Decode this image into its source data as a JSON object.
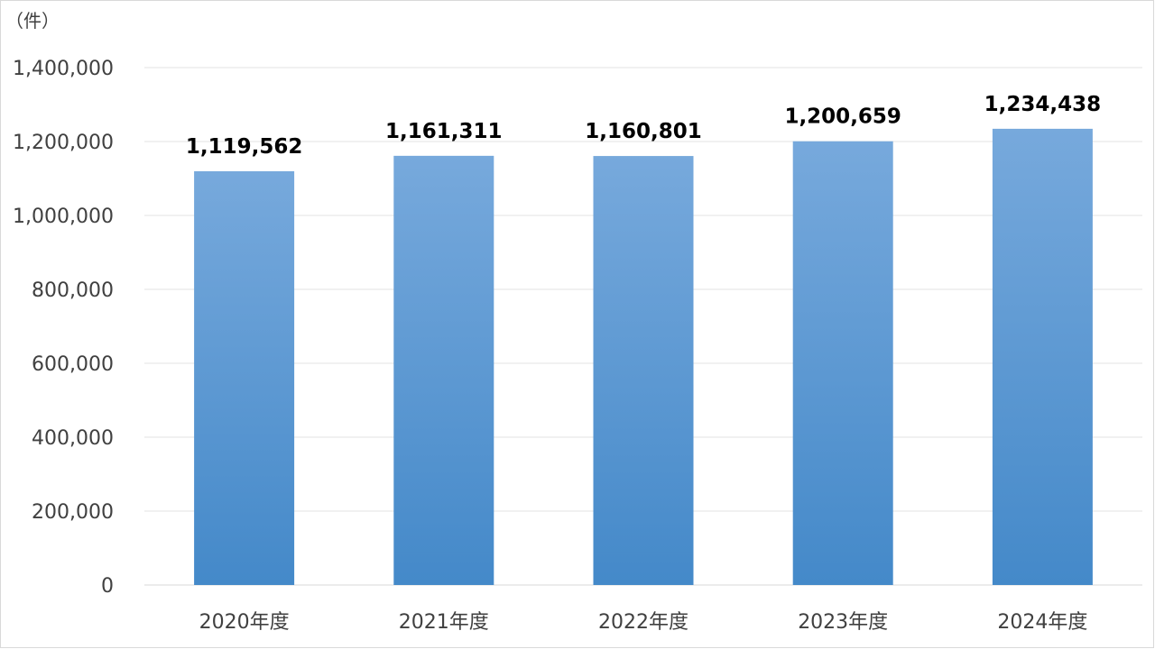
{
  "chart_data": {
    "type": "bar",
    "unit_label": "（件）",
    "categories": [
      "2020年度",
      "2021年度",
      "2022年度",
      "2023年度",
      "2024年度"
    ],
    "values": [
      1119562,
      1161311,
      1160801,
      1200659,
      1234438
    ],
    "data_labels": [
      "1,119,562",
      "1,161,311",
      "1,160,801",
      "1,200,659",
      "1,234,438"
    ],
    "ylim": [
      0,
      1400000
    ],
    "yticks": [
      0,
      200000,
      400000,
      600000,
      800000,
      1000000,
      1200000,
      1400000
    ],
    "ytick_labels": [
      "0",
      "200,000",
      "400,000",
      "600,000",
      "800,000",
      "1,000,000",
      "1,200,000",
      "1,400,000"
    ],
    "grid": true,
    "legend": "none",
    "colors": {
      "bar_top": "#77a9dc",
      "bar_bottom": "#4489c9"
    }
  }
}
